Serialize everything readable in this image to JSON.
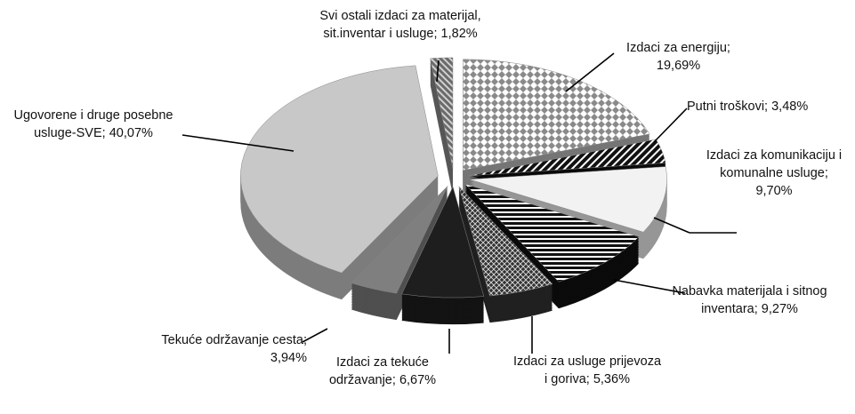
{
  "chart_data": {
    "type": "pie3d",
    "categories": [
      "Izdaci za energiju",
      "Putni troškovi",
      "Izdaci za komunikaciju i komunalne usluge",
      "Nabavka materijala i sitnog inventara",
      "Izdaci za usluge prijevoza i goriva",
      "Izdaci za tekuće održavanje",
      "Tekuće održavanje cesta",
      "Ugovorene i druge posebne usluge-SVE",
      "Svi ostali izdaci za materijal, sit.inventar i usluge"
    ],
    "values": [
      19.69,
      3.48,
      9.7,
      9.27,
      5.36,
      6.67,
      3.94,
      40.07,
      1.82
    ],
    "value_labels": [
      "19,69%",
      "3,48%",
      "9,70%",
      "9,27%",
      "5,36%",
      "6,67%",
      "3,94%",
      "40,07%",
      "1,82%"
    ],
    "separator": "; ",
    "colors": [
      "#bdbdbd",
      "#111111",
      "#f2f2f2",
      "#111111",
      "#333333",
      "#1e1e1e",
      "#7f7f7f",
      "#c8c8c8",
      "#8c8c8c"
    ],
    "patterns": [
      "checker",
      "hatch",
      "none",
      "stripes",
      "cross",
      "none",
      "none",
      "none",
      "diagonal"
    ],
    "exploded": true
  }
}
